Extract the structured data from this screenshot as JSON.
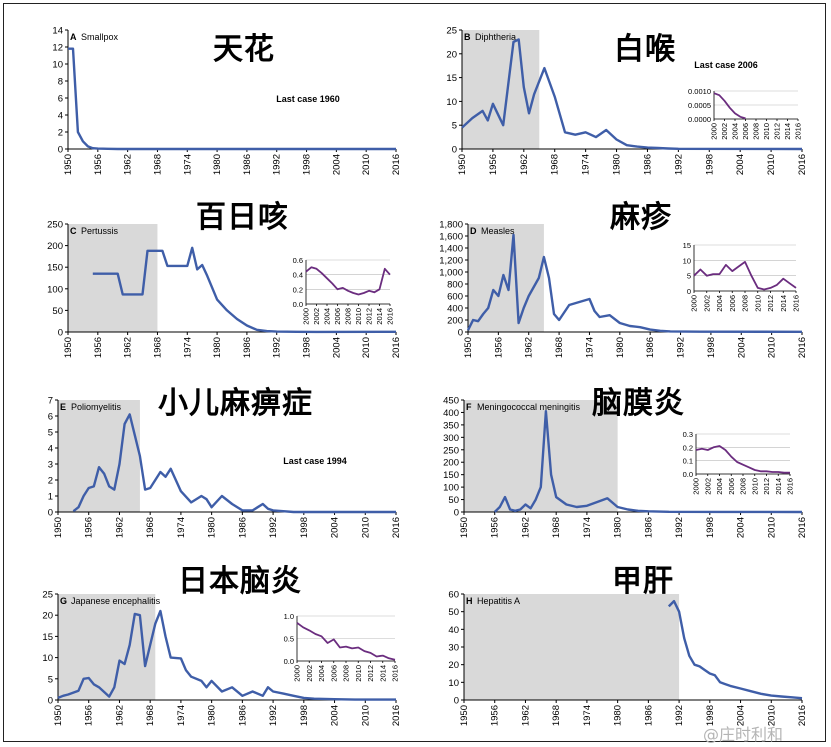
{
  "watermark": "@庄时利和",
  "chart_data": [
    {
      "id": "A",
      "type": "line",
      "panel_label": "A",
      "title": "Smallpox",
      "title_cn": "天花",
      "ylim": [
        0,
        14
      ],
      "yticks": [
        0,
        2,
        4,
        6,
        8,
        10,
        12,
        14
      ],
      "xlim": [
        1950,
        2016
      ],
      "xticks": [
        1950,
        1956,
        1962,
        1968,
        1974,
        1980,
        1986,
        1992,
        1998,
        2004,
        2010,
        2016
      ],
      "shaded": null,
      "annotation": "Last case 1960",
      "series": [
        {
          "color": "#3f5ea8",
          "x": [
            1950,
            1951,
            1952,
            1953,
            1954,
            1955,
            1956,
            1958,
            1960,
            1962,
            2016
          ],
          "y": [
            11.8,
            11.8,
            2,
            0.9,
            0.3,
            0.1,
            0.05,
            0.02,
            0,
            0,
            0
          ]
        }
      ],
      "inset": null
    },
    {
      "id": "B",
      "type": "line",
      "panel_label": "B",
      "title": "Diphtheria",
      "title_cn": "白喉",
      "ylim": [
        0,
        25
      ],
      "yticks": [
        0,
        5,
        10,
        15,
        20,
        25
      ],
      "xlim": [
        1950,
        2016
      ],
      "xticks": [
        1950,
        1956,
        1962,
        1968,
        1974,
        1980,
        1986,
        1992,
        1998,
        2004,
        2010,
        2016
      ],
      "shaded": [
        1950,
        1965
      ],
      "annotation": "Last case 2006",
      "series": [
        {
          "color": "#3f5ea8",
          "x": [
            1950,
            1952,
            1954,
            1955,
            1956,
            1958,
            1960,
            1961,
            1962,
            1963,
            1964,
            1966,
            1968,
            1970,
            1972,
            1974,
            1975,
            1976,
            1978,
            1980,
            1982,
            1984,
            1986,
            1988,
            1990,
            1992,
            2016
          ],
          "y": [
            4.5,
            6.5,
            8,
            6,
            9.5,
            5,
            22.5,
            23,
            13,
            7.5,
            11.5,
            17,
            11,
            3.5,
            3,
            3.5,
            3,
            2.5,
            4,
            2,
            0.8,
            0.5,
            0.3,
            0.2,
            0.1,
            0.05,
            0
          ]
        }
      ],
      "inset": {
        "color": "#6b2d7f",
        "ylim": [
          0,
          0.001
        ],
        "yticks": [
          0,
          0.0005,
          0.001
        ],
        "yticklabels": [
          "0.0000",
          "0.0005",
          "0.0010"
        ],
        "xlim": [
          2000,
          2016
        ],
        "xticks": [
          2000,
          2002,
          2004,
          2006,
          2008,
          2010,
          2012,
          2014,
          2016
        ],
        "x": [
          2000,
          2001,
          2002,
          2003,
          2004,
          2005,
          2006
        ],
        "y": [
          0.00092,
          0.00085,
          0.00065,
          0.0004,
          0.0002,
          8e-05,
          2e-05
        ]
      }
    },
    {
      "id": "C",
      "type": "line",
      "panel_label": "C",
      "title": "Pertussis",
      "title_cn": "百日咳",
      "ylim": [
        0,
        250
      ],
      "yticks": [
        0,
        50,
        100,
        150,
        200,
        250
      ],
      "xlim": [
        1950,
        2016
      ],
      "xticks": [
        1950,
        1956,
        1962,
        1968,
        1974,
        1980,
        1986,
        1992,
        1998,
        2004,
        2010,
        2016
      ],
      "shaded": [
        1950,
        1968
      ],
      "annotation": "",
      "series": [
        {
          "color": "#3f5ea8",
          "x": [
            1955,
            1956,
            1958,
            1960,
            1961,
            1962,
            1964,
            1965,
            1966,
            1968,
            1969,
            1970,
            1972,
            1974,
            1975,
            1976,
            1977,
            1978,
            1980,
            1982,
            1984,
            1986,
            1988,
            1990,
            1992,
            1996,
            2000,
            2016
          ],
          "y": [
            135,
            135,
            135,
            135,
            87,
            87,
            87,
            87,
            188,
            188,
            188,
            153,
            153,
            153,
            195,
            145,
            155,
            130,
            75,
            50,
            30,
            15,
            5,
            2,
            1,
            0.5,
            0.3,
            0.4
          ]
        }
      ],
      "inset": {
        "color": "#6b2d7f",
        "ylim": [
          0,
          0.6
        ],
        "yticks": [
          0,
          0.2,
          0.4,
          0.6
        ],
        "yticklabels": [
          "0.0",
          "0.2",
          "0.4",
          "0.6"
        ],
        "xlim": [
          2000,
          2016
        ],
        "xticks": [
          2000,
          2002,
          2004,
          2006,
          2008,
          2010,
          2012,
          2014,
          2016
        ],
        "x": [
          2000,
          2001,
          2002,
          2003,
          2004,
          2005,
          2006,
          2007,
          2008,
          2009,
          2010,
          2011,
          2012,
          2013,
          2014,
          2015,
          2016
        ],
        "y": [
          0.44,
          0.5,
          0.48,
          0.42,
          0.35,
          0.28,
          0.2,
          0.22,
          0.18,
          0.15,
          0.13,
          0.15,
          0.18,
          0.16,
          0.2,
          0.48,
          0.4
        ]
      }
    },
    {
      "id": "D",
      "type": "line",
      "panel_label": "D",
      "title": "Measles",
      "title_cn": "麻疹",
      "ylim": [
        0,
        1800
      ],
      "yticks": [
        0,
        200,
        400,
        600,
        800,
        1000,
        1200,
        1400,
        1600,
        1800
      ],
      "yticklabels": [
        "0",
        "200",
        "400",
        "600",
        "800",
        "1,000",
        "1,200",
        "1,400",
        "1,600",
        "1,800"
      ],
      "xlim": [
        1950,
        2016
      ],
      "xticks": [
        1950,
        1956,
        1962,
        1968,
        1974,
        1980,
        1986,
        1992,
        1998,
        2004,
        2010,
        2016
      ],
      "shaded": [
        1950,
        1965
      ],
      "annotation": "",
      "series": [
        {
          "color": "#3f5ea8",
          "x": [
            1950,
            1951,
            1952,
            1953,
            1954,
            1955,
            1956,
            1957,
            1958,
            1959,
            1960,
            1961,
            1962,
            1964,
            1965,
            1966,
            1967,
            1968,
            1970,
            1972,
            1974,
            1975,
            1976,
            1978,
            1980,
            1982,
            1984,
            1986,
            1988,
            1990,
            1996,
            2016
          ],
          "y": [
            30,
            200,
            180,
            300,
            400,
            700,
            600,
            950,
            700,
            1620,
            150,
            400,
            600,
            900,
            1250,
            900,
            300,
            200,
            450,
            500,
            550,
            350,
            250,
            280,
            150,
            100,
            80,
            40,
            20,
            10,
            5,
            3
          ]
        }
      ],
      "inset": {
        "color": "#6b2d7f",
        "ylim": [
          0,
          15
        ],
        "yticks": [
          0,
          5,
          10,
          15
        ],
        "yticklabels": [
          "0",
          "5",
          "10",
          "15"
        ],
        "xlim": [
          2000,
          2016
        ],
        "xticks": [
          2000,
          2002,
          2004,
          2006,
          2008,
          2010,
          2012,
          2014,
          2016
        ],
        "xticklabels": [
          "2000",
          "2002",
          "2004",
          "2006",
          "2008",
          "2010",
          "2012",
          "2014",
          "2016"
        ],
        "x": [
          2000,
          2001,
          2002,
          2003,
          2004,
          2005,
          2006,
          2007,
          2008,
          2009,
          2010,
          2011,
          2012,
          2013,
          2014,
          2015,
          2016
        ],
        "y": [
          5,
          7,
          5,
          5.5,
          5.5,
          8.5,
          6.5,
          8,
          9.5,
          5,
          1,
          0.5,
          1,
          2,
          4,
          2.5,
          1
        ]
      }
    },
    {
      "id": "E",
      "type": "line",
      "panel_label": "E",
      "title": "Poliomyelitis",
      "title_cn": "小儿麻痹症",
      "ylim": [
        0,
        7
      ],
      "yticks": [
        0,
        1,
        2,
        3,
        4,
        5,
        6,
        7
      ],
      "xlim": [
        1950,
        2016
      ],
      "xticks": [
        1950,
        1956,
        1962,
        1968,
        1974,
        1980,
        1986,
        1992,
        1998,
        2004,
        2010,
        2016
      ],
      "shaded": [
        1950,
        1966
      ],
      "annotation": "Last case 1994",
      "series": [
        {
          "color": "#3f5ea8",
          "x": [
            1953,
            1954,
            1955,
            1956,
            1957,
            1958,
            1959,
            1960,
            1961,
            1962,
            1963,
            1964,
            1965,
            1966,
            1967,
            1968,
            1970,
            1971,
            1972,
            1974,
            1976,
            1978,
            1979,
            1980,
            1982,
            1984,
            1986,
            1988,
            1989,
            1990,
            1991,
            1992,
            1994,
            1996,
            2016
          ],
          "y": [
            0.05,
            0.3,
            1,
            1.5,
            1.6,
            2.8,
            2.4,
            1.6,
            1.4,
            3,
            5.5,
            6.1,
            4.8,
            3.5,
            1.4,
            1.5,
            2.5,
            2.2,
            2.7,
            1.3,
            0.6,
            1,
            0.8,
            0.3,
            1,
            0.5,
            0.1,
            0.1,
            0.3,
            0.5,
            0.2,
            0.1,
            0.05,
            0,
            0
          ]
        }
      ],
      "inset": null
    },
    {
      "id": "F",
      "type": "line",
      "panel_label": "F",
      "title": "Meningococcal meningitis",
      "title_cn": "脑膜炎",
      "ylim": [
        0,
        450
      ],
      "yticks": [
        0,
        50,
        100,
        150,
        200,
        250,
        300,
        350,
        400,
        450
      ],
      "xlim": [
        1950,
        2016
      ],
      "xticks": [
        1950,
        1956,
        1962,
        1968,
        1974,
        1980,
        1986,
        1992,
        1998,
        2004,
        2010,
        2016
      ],
      "shaded": [
        1950,
        1980
      ],
      "annotation": "",
      "series": [
        {
          "color": "#3f5ea8",
          "x": [
            1956,
            1957,
            1958,
            1959,
            1960,
            1961,
            1962,
            1963,
            1964,
            1965,
            1966,
            1967,
            1968,
            1970,
            1972,
            1974,
            1976,
            1978,
            1980,
            1982,
            1984,
            1986,
            1990,
            2000,
            2016
          ],
          "y": [
            0,
            20,
            60,
            10,
            5,
            10,
            30,
            15,
            50,
            100,
            405,
            150,
            60,
            30,
            20,
            25,
            40,
            55,
            20,
            10,
            5,
            3,
            1,
            0.5,
            0.2
          ]
        }
      ],
      "inset": {
        "color": "#6b2d7f",
        "ylim": [
          0,
          0.3
        ],
        "yticks": [
          0,
          0.1,
          0.2,
          0.3
        ],
        "yticklabels": [
          "0.0",
          "0.1",
          "0.2",
          "0.3"
        ],
        "xlim": [
          2000,
          2016
        ],
        "xticks": [
          2000,
          2002,
          2004,
          2006,
          2008,
          2010,
          2012,
          2014,
          2016
        ],
        "x": [
          2000,
          2001,
          2002,
          2003,
          2004,
          2005,
          2006,
          2007,
          2008,
          2009,
          2010,
          2011,
          2012,
          2013,
          2014,
          2015,
          2016
        ],
        "y": [
          0.18,
          0.19,
          0.18,
          0.2,
          0.21,
          0.18,
          0.13,
          0.09,
          0.07,
          0.05,
          0.03,
          0.02,
          0.02,
          0.015,
          0.015,
          0.01,
          0.01
        ]
      }
    },
    {
      "id": "G",
      "type": "line",
      "panel_label": "G",
      "title": "Japanese encephalitis",
      "title_cn": "日本脑炎",
      "ylim": [
        0,
        25
      ],
      "yticks": [
        0,
        5,
        10,
        15,
        20,
        25
      ],
      "xlim": [
        1950,
        2016
      ],
      "xticks": [
        1950,
        1956,
        1962,
        1968,
        1974,
        1980,
        1986,
        1992,
        1998,
        2004,
        2010,
        2016
      ],
      "shaded": [
        1950,
        1969
      ],
      "annotation": "",
      "series": [
        {
          "color": "#3f5ea8",
          "x": [
            1950,
            1951,
            1952,
            1954,
            1955,
            1956,
            1957,
            1958,
            1960,
            1961,
            1962,
            1963,
            1964,
            1965,
            1966,
            1967,
            1968,
            1969,
            1970,
            1971,
            1972,
            1974,
            1975,
            1976,
            1978,
            1979,
            1980,
            1982,
            1984,
            1986,
            1988,
            1990,
            1991,
            1992,
            1994,
            1996,
            1998,
            2000,
            2004,
            2008,
            2016
          ],
          "y": [
            0.5,
            1,
            1.3,
            2.2,
            5,
            5.2,
            3.7,
            3,
            0.8,
            3,
            9.3,
            8.5,
            13,
            20.3,
            20,
            8,
            13,
            18,
            21,
            15,
            10,
            9.8,
            7,
            5.5,
            4.5,
            3,
            4.5,
            2,
            3,
            1,
            2,
            1,
            3,
            2,
            1.5,
            1,
            0.5,
            0.3,
            0.2,
            0.1,
            0.1
          ]
        }
      ],
      "inset": {
        "color": "#6b2d7f",
        "ylim": [
          0,
          1.0
        ],
        "yticks": [
          0,
          0.5,
          1.0
        ],
        "yticklabels": [
          "0.0",
          "0.5",
          "1.0"
        ],
        "xlim": [
          2000,
          2016
        ],
        "xticks": [
          2000,
          2002,
          2004,
          2006,
          2008,
          2010,
          2012,
          2014,
          2016
        ],
        "x": [
          2000,
          2001,
          2002,
          2003,
          2004,
          2005,
          2006,
          2007,
          2008,
          2009,
          2010,
          2011,
          2012,
          2013,
          2014,
          2015,
          2016
        ],
        "y": [
          0.85,
          0.75,
          0.68,
          0.6,
          0.55,
          0.4,
          0.48,
          0.3,
          0.32,
          0.28,
          0.3,
          0.22,
          0.18,
          0.1,
          0.12,
          0.06,
          0.03
        ]
      }
    },
    {
      "id": "H",
      "type": "line",
      "panel_label": "H",
      "title": "Hepatitis A",
      "title_cn": "甲肝",
      "ylim": [
        0,
        60
      ],
      "yticks": [
        0,
        10,
        20,
        30,
        40,
        50,
        60
      ],
      "xlim": [
        1950,
        2016
      ],
      "xticks": [
        1950,
        1956,
        1962,
        1968,
        1974,
        1980,
        1986,
        1992,
        1998,
        2004,
        2010,
        2016
      ],
      "xticklabels": [
        "1950",
        "1956",
        "1962",
        "1968",
        "1974",
        "1980",
        "1986",
        "1992",
        "1998",
        "2004",
        "2010",
        "2016"
      ],
      "shaded": [
        1950,
        1992
      ],
      "annotation": "",
      "series": [
        {
          "color": "#3f5ea8",
          "x": [
            1990,
            1991,
            1992,
            1993,
            1994,
            1995,
            1996,
            1997,
            1998,
            1999,
            2000,
            2001,
            2002,
            2004,
            2006,
            2008,
            2010,
            2012,
            2014,
            2016
          ],
          "y": [
            53,
            56,
            50,
            35,
            25,
            20,
            19,
            17,
            15,
            14,
            10,
            9,
            8,
            6.5,
            5,
            3.5,
            2.5,
            2,
            1.5,
            1
          ]
        }
      ],
      "inset": null
    }
  ]
}
